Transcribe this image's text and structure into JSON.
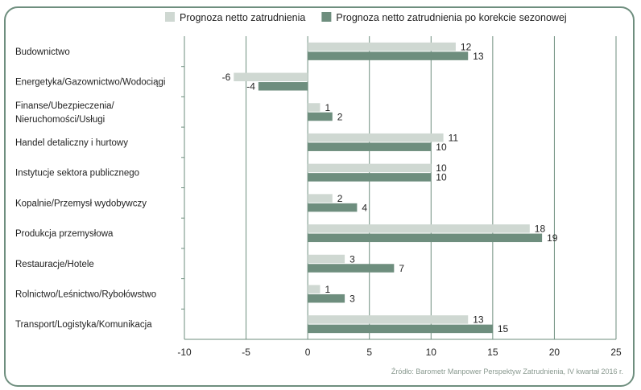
{
  "chart_data": {
    "type": "bar",
    "orientation": "horizontal",
    "categories": [
      "Budownictwo",
      "Energetyka/Gazownictwo/Wodociągi",
      "Finanse/Ubezpieczenia/\nNieruchomości/Usługi",
      "Handel detaliczny i hurtowy",
      "Instytucje sektora publicznego",
      "Kopalnie/Przemysł wydobywczy",
      "Produkcja przemysłowa",
      "Restauracje/Hotele",
      "Rolnictwo/Leśnictwo/Rybołówstwo",
      "Transport/Logistyka/Komunikacja"
    ],
    "series": [
      {
        "name": "Prognoza netto zatrudnienia",
        "color": "#cfd8d2",
        "values": [
          12,
          -6,
          1,
          11,
          10,
          2,
          18,
          3,
          1,
          13
        ]
      },
      {
        "name": "Prognoza netto zatrudnienia po korekcie sezonowej",
        "color": "#6e8e7e",
        "values": [
          13,
          -4,
          2,
          10,
          10,
          4,
          19,
          7,
          3,
          15
        ]
      }
    ],
    "xlim": [
      -10,
      25
    ],
    "xticks": [
      -10,
      -5,
      0,
      5,
      10,
      15,
      20,
      25
    ],
    "legend_position": "top",
    "grid": "vertical"
  },
  "source": "Źródło: Barometr Manpower Perspektyw Zatrudnienia, IV kwartał 2016 r.",
  "colors": {
    "frame": "#6e8e7e",
    "grid": "#6e8e7e",
    "text": "#222222"
  }
}
